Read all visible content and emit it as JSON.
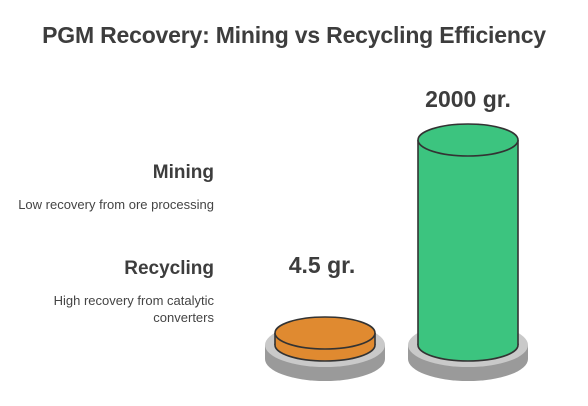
{
  "title": "PGM Recovery: Mining vs Recycling Efficiency",
  "legend": [
    {
      "name": "Mining",
      "description": "Low recovery from ore processing"
    },
    {
      "name": "Recycling",
      "description": "High recovery from catalytic converters"
    }
  ],
  "colors": {
    "recycling_fill": "#e08a30",
    "recycling_top": "#e08a30",
    "mining_fill": "#3cc47f",
    "mining_top": "#3cc47f",
    "base": "#c9c9c9",
    "base_edge": "#9a9a9a"
  },
  "chart_data": {
    "type": "bar",
    "title": "PGM Recovery: Mining vs Recycling Efficiency",
    "categories": [
      "Mining",
      "Recycling"
    ],
    "values": [
      4.5,
      2000
    ],
    "unit": "gr.",
    "data_labels": [
      "4.5 gr.",
      "2000 gr."
    ],
    "legend_position": "left"
  }
}
